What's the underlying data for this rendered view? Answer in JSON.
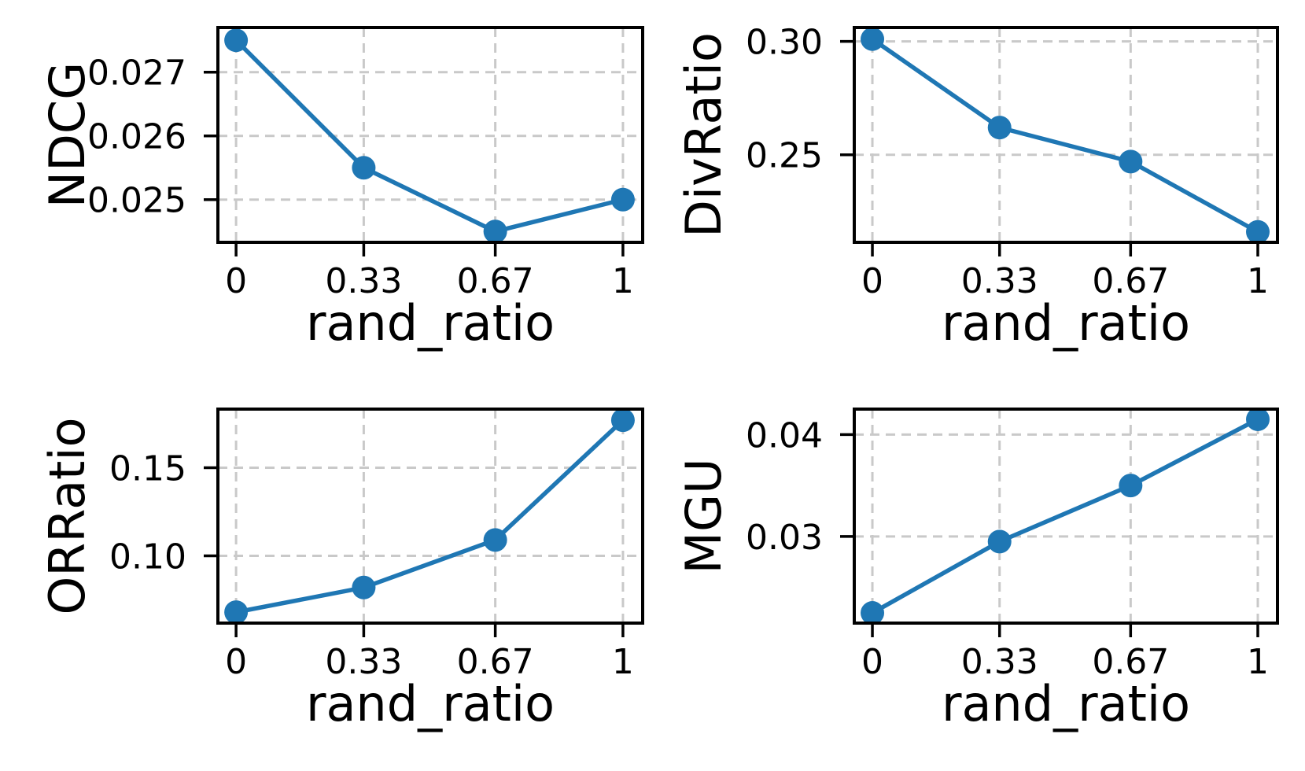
{
  "figure": {
    "background": "#ffffff",
    "xlabel": "rand_ratio"
  },
  "style": {
    "line_color": "#1f77b4",
    "marker_color": "#1f77b4",
    "grid_color": "#c9c9c9",
    "spine_color": "#000000",
    "text_color": "#000000"
  },
  "chart_data": [
    {
      "type": "line",
      "title": "",
      "xlabel": "rand_ratio",
      "ylabel": "NDCG",
      "x": [
        0,
        0.33,
        0.67,
        1
      ],
      "values": [
        0.0275,
        0.0255,
        0.0245,
        0.025
      ],
      "xticks": [
        0,
        0.33,
        0.67,
        1
      ],
      "xtick_labels": [
        "0",
        "0.33",
        "0.67",
        "1"
      ],
      "yticks": [
        0.025,
        0.026,
        0.027
      ],
      "ytick_labels": [
        "0.025",
        "0.026",
        "0.027"
      ],
      "xlim": [
        -0.047,
        1.051
      ],
      "ylim": [
        0.02433,
        0.0277
      ],
      "grid": true,
      "grid_style": "dashed",
      "legend": "none",
      "marker": "circle"
    },
    {
      "type": "line",
      "title": "",
      "xlabel": "rand_ratio",
      "ylabel": "DivRatio",
      "x": [
        0,
        0.33,
        0.67,
        1
      ],
      "values": [
        0.301,
        0.262,
        0.247,
        0.216
      ],
      "xticks": [
        0,
        0.33,
        0.67,
        1
      ],
      "xtick_labels": [
        "0",
        "0.33",
        "0.67",
        "1"
      ],
      "yticks": [
        0.25,
        0.3
      ],
      "ytick_labels": [
        "0.25",
        "0.30"
      ],
      "xlim": [
        -0.047,
        1.051
      ],
      "ylim": [
        0.2114,
        0.3061
      ],
      "grid": true,
      "grid_style": "dashed",
      "legend": "none",
      "marker": "circle"
    },
    {
      "type": "line",
      "title": "",
      "xlabel": "rand_ratio",
      "ylabel": "ORRatio",
      "x": [
        0,
        0.33,
        0.67,
        1
      ],
      "values": [
        0.068,
        0.082,
        0.109,
        0.177
      ],
      "xticks": [
        0,
        0.33,
        0.67,
        1
      ],
      "xtick_labels": [
        "0",
        "0.33",
        "0.67",
        "1"
      ],
      "yticks": [
        0.1,
        0.15
      ],
      "ytick_labels": [
        "0.10",
        "0.15"
      ],
      "xlim": [
        -0.047,
        1.051
      ],
      "ylim": [
        0.0618,
        0.1833
      ],
      "grid": true,
      "grid_style": "dashed",
      "legend": "none",
      "marker": "circle"
    },
    {
      "type": "line",
      "title": "",
      "xlabel": "rand_ratio",
      "ylabel": "MGU",
      "x": [
        0,
        0.33,
        0.67,
        1
      ],
      "values": [
        0.0225,
        0.0295,
        0.035,
        0.0415
      ],
      "xticks": [
        0,
        0.33,
        0.67,
        1
      ],
      "xtick_labels": [
        "0",
        "0.33",
        "0.67",
        "1"
      ],
      "yticks": [
        0.03,
        0.04
      ],
      "ytick_labels": [
        "0.03",
        "0.04"
      ],
      "xlim": [
        -0.047,
        1.051
      ],
      "ylim": [
        0.0215,
        0.0425
      ],
      "grid": true,
      "grid_style": "dashed",
      "legend": "none",
      "marker": "circle"
    }
  ]
}
